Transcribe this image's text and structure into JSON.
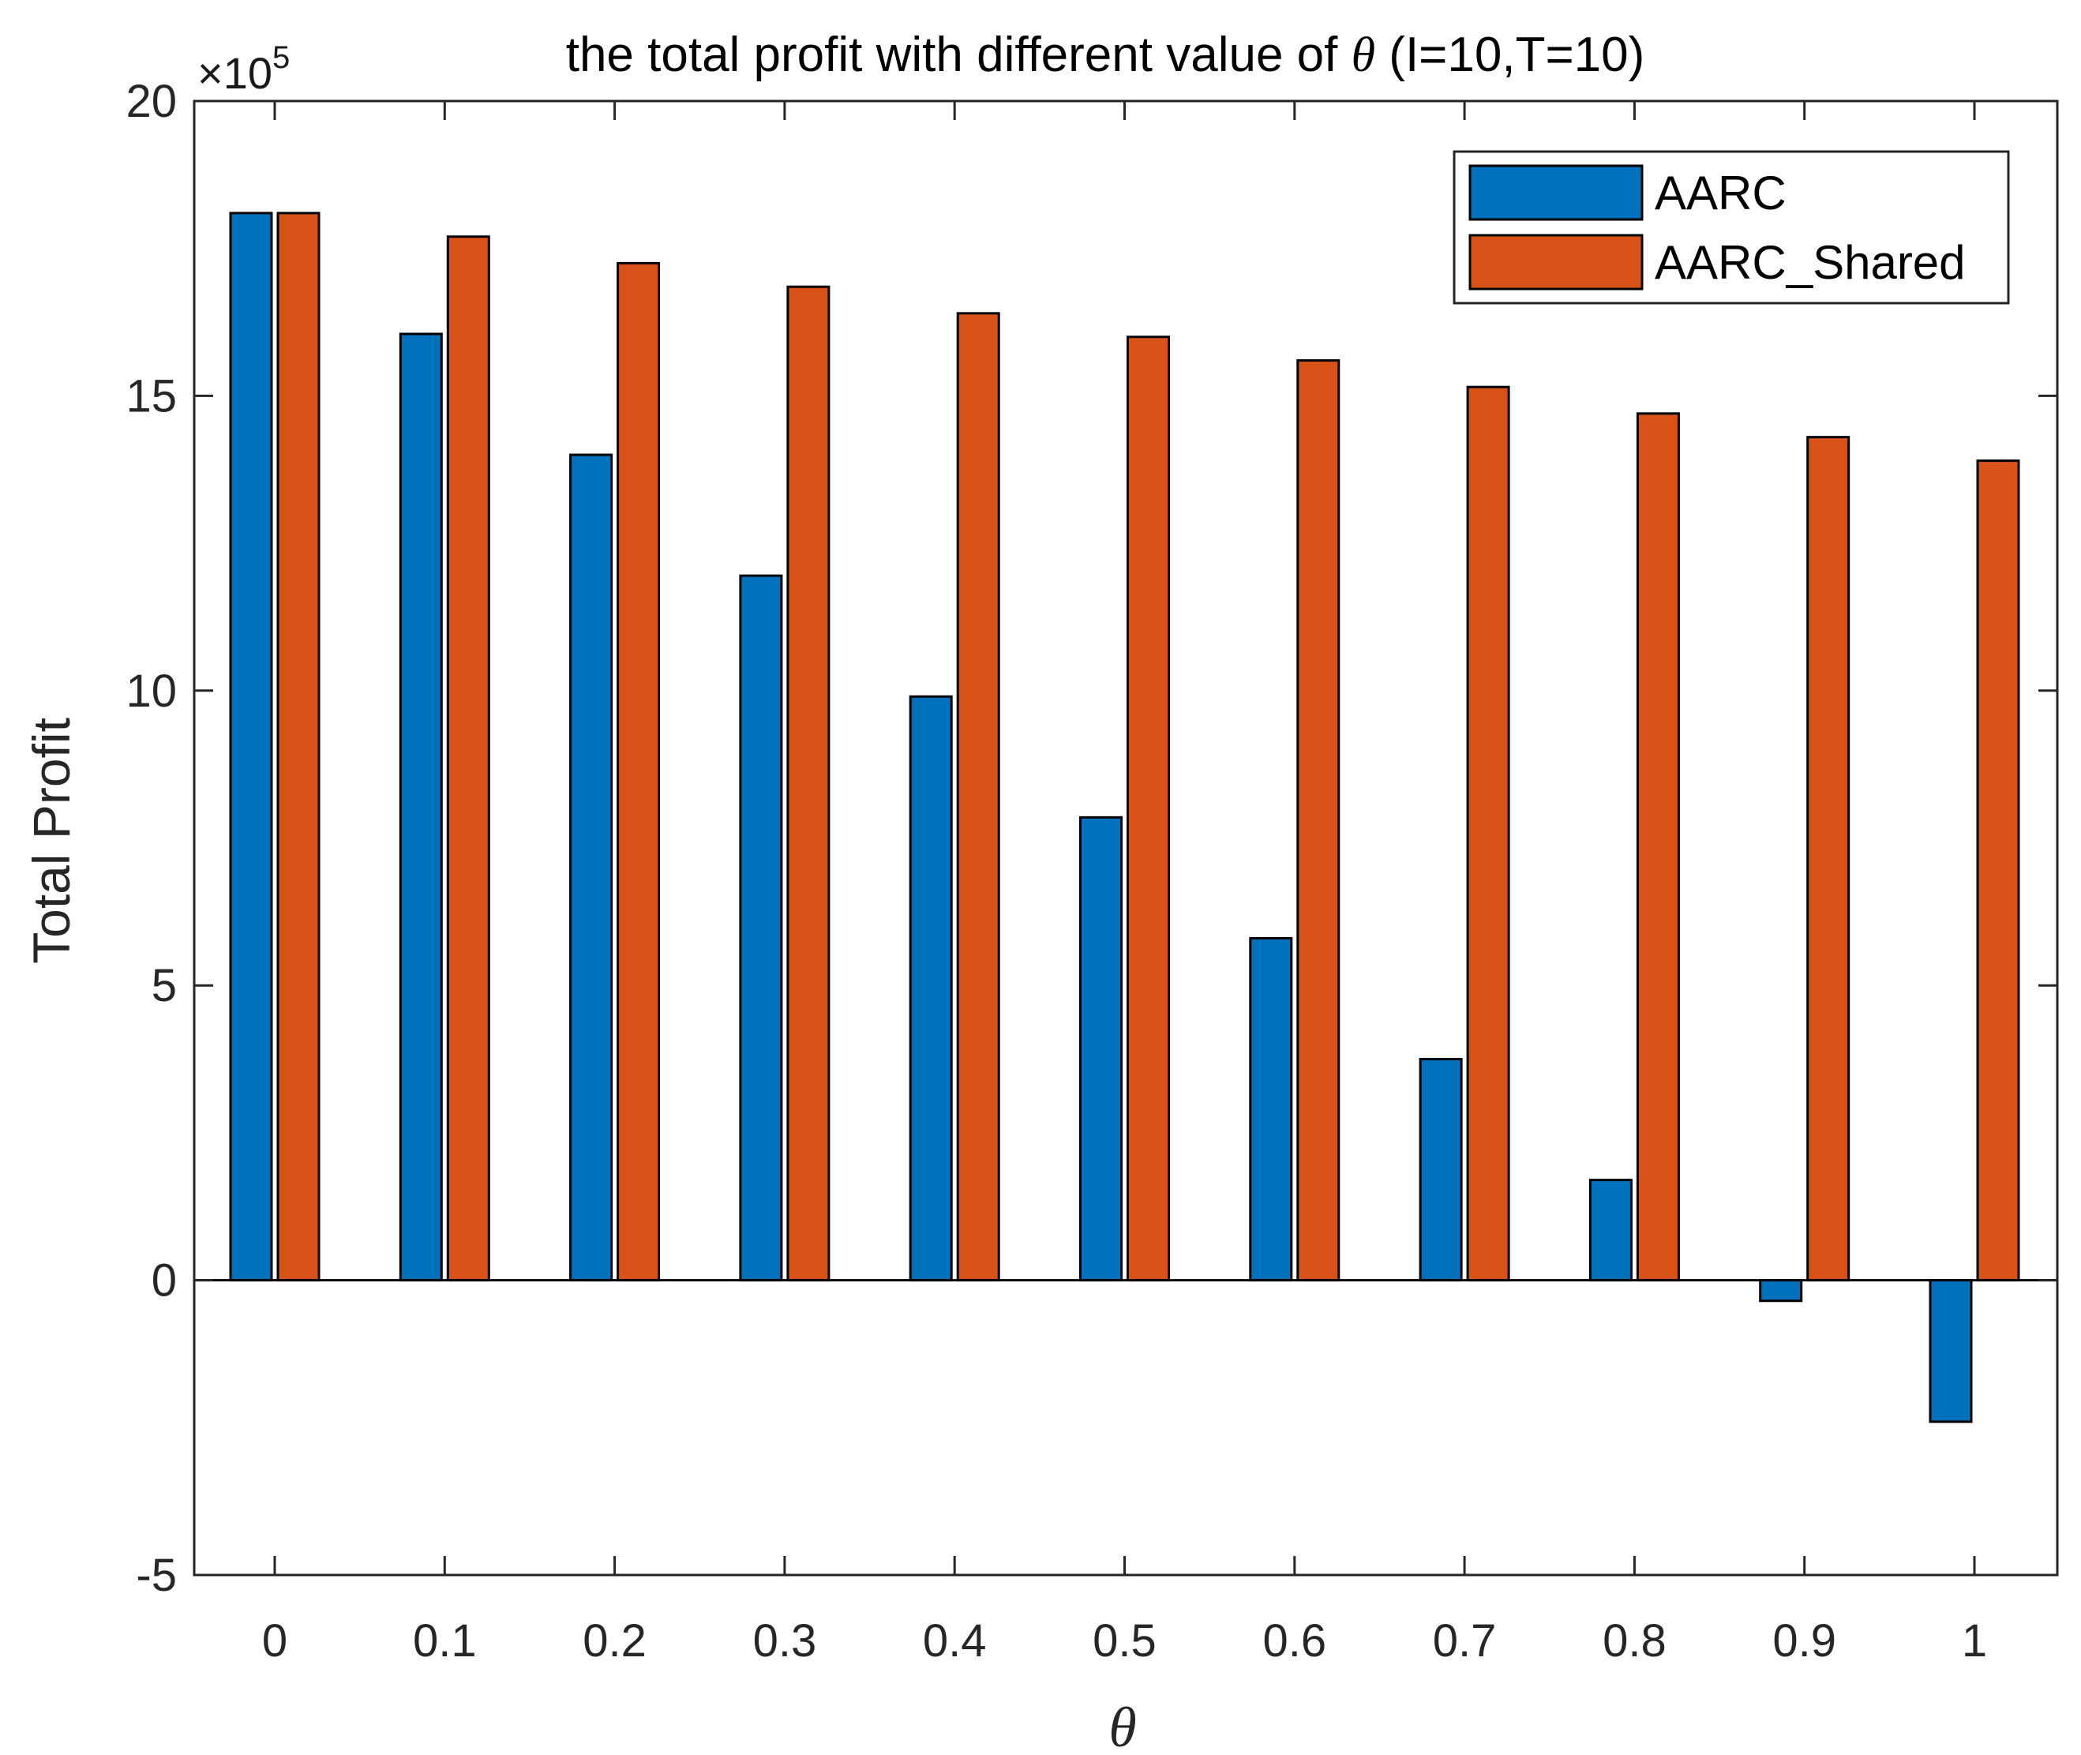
{
  "chart_data": {
    "type": "bar",
    "title_prefix": "the total profit with different value of ",
    "title_symbol": "θ",
    "title_suffix": " (I=10,T=10)",
    "xlabel": "θ",
    "ylabel": "Total Profit",
    "exponent_base": "×10",
    "exponent_power": "5",
    "categories": [
      "0",
      "0.1",
      "0.2",
      "0.3",
      "0.4",
      "0.5",
      "0.6",
      "0.7",
      "0.8",
      "0.9",
      "1"
    ],
    "ylim": [
      -5,
      20
    ],
    "yticks": [
      -5,
      0,
      5,
      10,
      15,
      20
    ],
    "ytick_labels": [
      "-5",
      "0",
      "5",
      "10",
      "15",
      "20"
    ],
    "grid": false,
    "legend_position": "top-right",
    "series": [
      {
        "name": "AARC",
        "color": "#0072BD",
        "values": [
          18.1,
          16.05,
          14.0,
          11.95,
          9.9,
          7.85,
          5.8,
          3.75,
          1.7,
          -0.35,
          -2.4
        ]
      },
      {
        "name": "AARC_Shared",
        "color": "#D95319",
        "values": [
          18.1,
          17.7,
          17.25,
          16.85,
          16.4,
          16.0,
          15.6,
          15.15,
          14.7,
          14.3,
          13.9
        ]
      }
    ]
  }
}
